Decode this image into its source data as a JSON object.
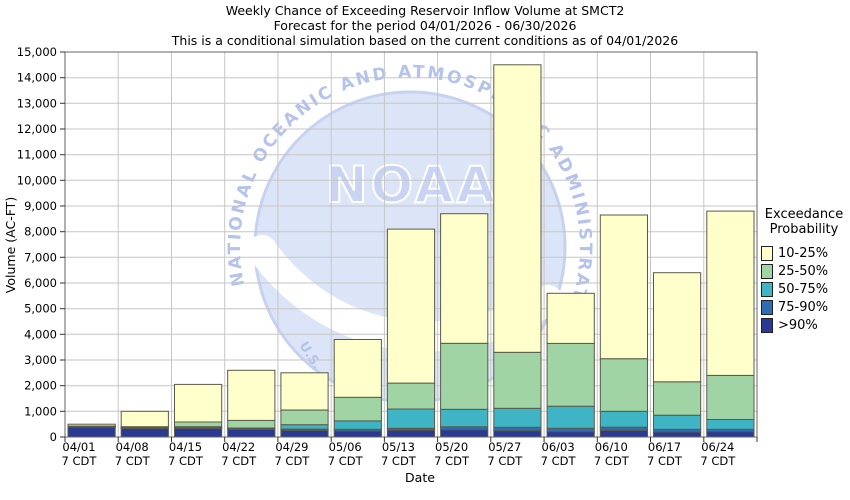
{
  "watermark": {
    "center": "NOAA",
    "ring": "NATIONAL OCEANIC AND ATMOSPHERIC ADMINISTRATION",
    "bottom": "U.S."
  },
  "chart_data": {
    "type": "bar",
    "stacked": true,
    "title_lines": [
      "Weekly Chance of Exceeding Reservoir Inflow Volume at SMCT2",
      "Forecast for the period 04/01/2026 - 06/30/2026",
      "This is a conditional simulation based on the current conditions as of 04/01/2026"
    ],
    "xlabel": "Date",
    "ylabel": "Volume (AC-FT)",
    "ylim": [
      0,
      15000
    ],
    "y_tick_step": 1000,
    "grid": true,
    "legend_position": "right",
    "legend_title_lines": [
      "Exceedance",
      "Probability"
    ],
    "categories": [
      "04/01",
      "04/08",
      "04/15",
      "04/22",
      "04/29",
      "05/06",
      "05/13",
      "05/20",
      "05/27",
      "06/03",
      "06/10",
      "06/17",
      "06/24"
    ],
    "category_sublabel": "7 CDT",
    "encoding_note": "cum_top = cumulative stack top (AC-FT); each band spans from the next series' cum_top (0 for >90%) up to its own cum_top",
    "series": [
      {
        "name": "10-25%",
        "color": "#FFFFCC",
        "cum_top": [
          500,
          1000,
          2050,
          2600,
          2500,
          3800,
          8100,
          8700,
          14500,
          5600,
          8650,
          6400,
          8800
        ]
      },
      {
        "name": "25-50%",
        "color": "#A1D4A4",
        "cum_top": [
          430,
          400,
          585,
          650,
          1050,
          1550,
          2100,
          3650,
          3300,
          3650,
          3050,
          2150,
          2400
        ]
      },
      {
        "name": "50-75%",
        "color": "#3FB4C4",
        "cum_top": [
          420,
          380,
          400,
          350,
          480,
          625,
          1090,
          1080,
          1120,
          1200,
          1000,
          850,
          680
        ]
      },
      {
        "name": "75-90%",
        "color": "#2E6DB4",
        "cum_top": [
          410,
          360,
          370,
          325,
          310,
          300,
          340,
          400,
          380,
          340,
          380,
          300,
          300
        ]
      },
      {
        "name": ">90%",
        "color": "#2A3A94",
        "cum_top": [
          400,
          340,
          340,
          300,
          260,
          235,
          270,
          285,
          245,
          210,
          260,
          195,
          210
        ]
      }
    ]
  }
}
